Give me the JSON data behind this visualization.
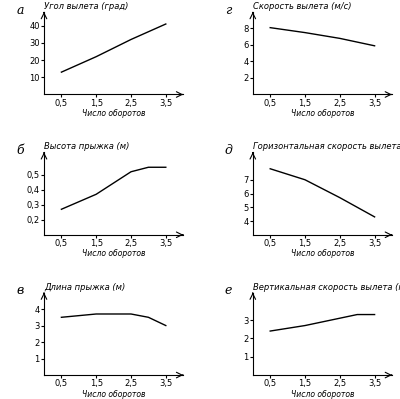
{
  "charts": [
    {
      "label": "а",
      "title": "Угол вылета (град)",
      "xlabel": "Число оборотов",
      "x": [
        0.5,
        1.5,
        2.5,
        3.5
      ],
      "y": [
        13,
        22,
        32,
        41
      ],
      "ylim": [
        0,
        48
      ],
      "yticks": [
        10,
        20,
        30,
        40
      ],
      "xticks": [
        0.5,
        1.5,
        2.5,
        3.5
      ],
      "xlim": [
        0,
        4.0
      ]
    },
    {
      "label": "г",
      "title": "Скорость вылета (м/с)",
      "xlabel": "Число оборотов",
      "x": [
        0.5,
        1.5,
        2.5,
        3.5
      ],
      "y": [
        8.1,
        7.5,
        6.8,
        5.9
      ],
      "ylim": [
        0,
        10
      ],
      "yticks": [
        2,
        4,
        6,
        8
      ],
      "xticks": [
        0.5,
        1.5,
        2.5,
        3.5
      ],
      "xlim": [
        0,
        4.0
      ]
    },
    {
      "label": "б",
      "title": "Высота прыжка (м)",
      "xlabel": "Число оборотов",
      "x": [
        0.5,
        1.5,
        2.5,
        3.0,
        3.5
      ],
      "y": [
        0.27,
        0.37,
        0.52,
        0.55,
        0.55
      ],
      "ylim": [
        0.1,
        0.65
      ],
      "yticks": [
        0.2,
        0.3,
        0.4,
        0.5
      ],
      "xticks": [
        0.5,
        1.5,
        2.5,
        3.5
      ],
      "xlim": [
        0,
        4.0
      ]
    },
    {
      "label": "д",
      "title": "Горизонтальная скорость вылета (м/с)",
      "xlabel": "Число оборотов",
      "x": [
        0.5,
        1.5,
        2.5,
        3.5
      ],
      "y": [
        7.8,
        7.0,
        5.7,
        4.3
      ],
      "ylim": [
        3,
        9
      ],
      "yticks": [
        4,
        5,
        6,
        7
      ],
      "xticks": [
        0.5,
        1.5,
        2.5,
        3.5
      ],
      "xlim": [
        0,
        4.0
      ]
    },
    {
      "label": "в",
      "title": "Длина прыжка (м)",
      "xlabel": "Число оборотов",
      "x": [
        0.5,
        1.5,
        2.5,
        3.0,
        3.5
      ],
      "y": [
        3.5,
        3.7,
        3.7,
        3.5,
        3.0
      ],
      "ylim": [
        0,
        5
      ],
      "yticks": [
        1,
        2,
        3,
        4
      ],
      "xticks": [
        0.5,
        1.5,
        2.5,
        3.5
      ],
      "xlim": [
        0,
        4.0
      ]
    },
    {
      "label": "е",
      "title": "Вертикальная скорость вылета (м/с)",
      "xlabel": "Число оборотов",
      "x": [
        0.5,
        1.5,
        2.5,
        3.0,
        3.5
      ],
      "y": [
        2.4,
        2.7,
        3.1,
        3.3,
        3.3
      ],
      "ylim": [
        0,
        4.5
      ],
      "yticks": [
        1,
        2,
        3
      ],
      "xticks": [
        0.5,
        1.5,
        2.5,
        3.5
      ],
      "xlim": [
        0,
        4.0
      ]
    }
  ],
  "line_color": "#000000",
  "bg_color": "#ffffff",
  "title_fontsize": 6.0,
  "label_fontsize": 5.5,
  "tick_fontsize": 6.0,
  "panel_label_fontsize": 9
}
